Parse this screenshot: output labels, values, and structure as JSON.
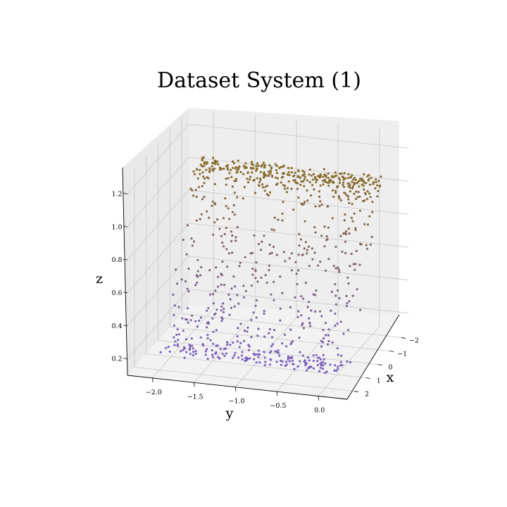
{
  "chart_data": {
    "type": "scatter",
    "subtype": "3d",
    "title": "Dataset System (1)",
    "xlabel": "x",
    "ylabel": "y",
    "zlabel": "z",
    "x_ticks": [
      "−2",
      "−1",
      "0",
      "1",
      "2"
    ],
    "y_ticks": [
      "−2.0",
      "−1.5",
      "−1.0",
      "−0.5",
      "0.0"
    ],
    "z_ticks": [
      "0.2",
      "0.4",
      "0.6",
      "0.8",
      "1.0",
      "1.2"
    ],
    "x_ticks_values": [
      -2,
      -1,
      0,
      1,
      2
    ],
    "y_ticks_values": [
      -2.0,
      -1.5,
      -1.0,
      -0.5,
      0.0
    ],
    "z_ticks_values": [
      0.2,
      0.4,
      0.6,
      0.8,
      1.0,
      1.2
    ],
    "xlim": [
      -2.6,
      2.6
    ],
    "ylim": [
      -2.3,
      0.35
    ],
    "zlim": [
      0.1,
      1.3
    ],
    "grid": true,
    "color_low": "#7b62c0",
    "color_high": "#8a6d1e",
    "color_mid": "#8a6a5c",
    "pane_color": "#f2f2f2",
    "grid_color": "#cccccc",
    "point_count": 900,
    "structure": "scattered points forming a bent curved band (U-shaped trough) whose color shifts from purple at low z to brown at high z"
  }
}
